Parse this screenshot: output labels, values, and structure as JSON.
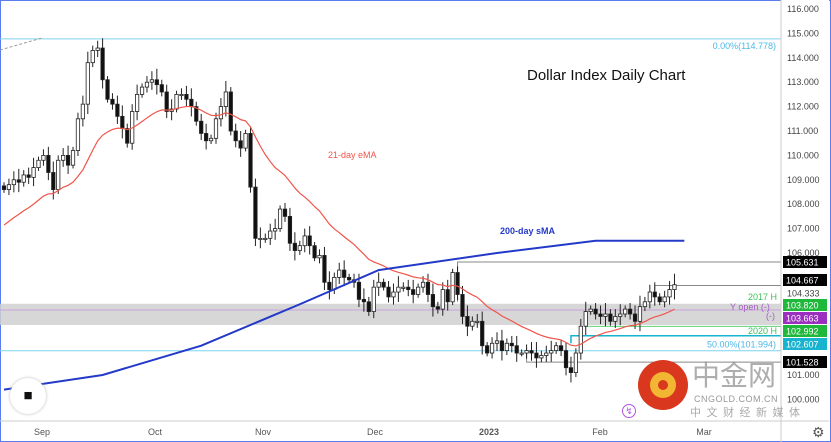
{
  "chart_data": {
    "type": "candlestick",
    "title": "Dollar Index Daily Chart",
    "x_tick_labels": [
      "Sep",
      "Oct",
      "Nov",
      "Dec",
      "2023",
      "Feb",
      "Mar"
    ],
    "y_tick_labels": [
      "116.000",
      "115.000",
      "114.000",
      "113.000",
      "112.000",
      "111.000",
      "110.000",
      "109.000",
      "108.000",
      "107.000",
      "106.000",
      "101.000",
      "100.000"
    ],
    "ylim": [
      100.2,
      116.35
    ],
    "closes": [
      108.6,
      108.8,
      109.0,
      108.9,
      109.2,
      109.1,
      109.5,
      109.8,
      110.0,
      109.3,
      108.6,
      109.8,
      110.0,
      109.6,
      110.2,
      111.5,
      112.1,
      113.8,
      114.3,
      114.4,
      113.1,
      112.3,
      112.1,
      111.6,
      111.1,
      110.5,
      111.8,
      112.5,
      112.8,
      113.0,
      113.1,
      112.9,
      112.6,
      111.8,
      111.9,
      112.5,
      112.5,
      112.3,
      112.0,
      111.4,
      110.9,
      110.6,
      110.7,
      111.5,
      112.0,
      112.6,
      111.0,
      110.6,
      110.3,
      110.9,
      108.7,
      106.6,
      106.6,
      106.6,
      106.9,
      107.0,
      107.8,
      107.5,
      106.4,
      106.1,
      106.3,
      106.7,
      106.3,
      105.8,
      105.9,
      104.8,
      104.5,
      105.0,
      105.3,
      105.0,
      104.9,
      104.8,
      104.1,
      104.0,
      103.6,
      104.6,
      104.8,
      104.6,
      104.2,
      104.4,
      104.6,
      104.6,
      104.5,
      104.3,
      104.6,
      104.8,
      104.3,
      103.8,
      103.7,
      104.5,
      104.0,
      105.2,
      104.3,
      103.4,
      103.0,
      103.2,
      103.2,
      102.2,
      101.9,
      102.3,
      102.4,
      102.0,
      102.3,
      102.2,
      101.9,
      101.9,
      102.0,
      101.9,
      101.7,
      101.8,
      101.9,
      102.0,
      102.2,
      102.0,
      101.3,
      101.1,
      101.9,
      103.0,
      103.6,
      103.7,
      103.5,
      103.4,
      103.5,
      103.2,
      103.4,
      103.5,
      103.7,
      103.5,
      103.2,
      103.8,
      104.0,
      104.4,
      104.2,
      104.0,
      104.2,
      104.5,
      104.7
    ],
    "series": [
      {
        "name": "21-day eMA",
        "color": "#f0554a",
        "initial": 107.0
      },
      {
        "name": "200-day sMA",
        "color": "#2339c8",
        "keypoints": [
          [
            0,
            100.4
          ],
          [
            20,
            101.0
          ],
          [
            40,
            102.2
          ],
          [
            60,
            103.9
          ],
          [
            76,
            105.3
          ],
          [
            100,
            106.0
          ],
          [
            120,
            106.5
          ],
          [
            138,
            106.5
          ]
        ]
      }
    ],
    "levels": [
      {
        "label": "105.631",
        "value": 105.631,
        "tag_color": "#000000",
        "line_color": "#808080"
      },
      {
        "label": "104.667",
        "value": 104.667,
        "tag_color": "#000000",
        "line_color": "#808080"
      },
      {
        "label": "103.820",
        "value": 103.82,
        "tag_color": "#1fb83a",
        "note": "2017 H"
      },
      {
        "label": "103.663",
        "value": 103.663,
        "tag_color": "#9b2fbf",
        "note": "Y open (-)"
      },
      {
        "label": "102.992",
        "value": 102.992,
        "tag_color": "#1fb83a",
        "note": "2020 H"
      },
      {
        "label": "102.607",
        "value": 102.607,
        "tag_color": "#17b3cf",
        "line_color": "#17b3cf"
      },
      {
        "label": "101.528",
        "value": 101.528,
        "tag_color": "#000000",
        "line_color": "#808080"
      }
    ],
    "plain_price": "104.333",
    "fib": [
      {
        "label": "0.00%(114.778)",
        "value": 114.778
      },
      {
        "label": "50.00%(101.994)",
        "value": 101.994
      }
    ],
    "annotations": {
      "ema": "21-day eMA",
      "sma": "200-day sMA",
      "y_open_sub": "(-)"
    }
  },
  "watermark": {
    "name": "中金网",
    "site": "CNGOLD.COM.CN",
    "tagline": "中 文 财 经 新 媒 体"
  },
  "colors": {
    "ema": "#f0554a",
    "sma": "#2339c8",
    "fib": "#7fd3f0",
    "band": "#d0d0d0"
  }
}
